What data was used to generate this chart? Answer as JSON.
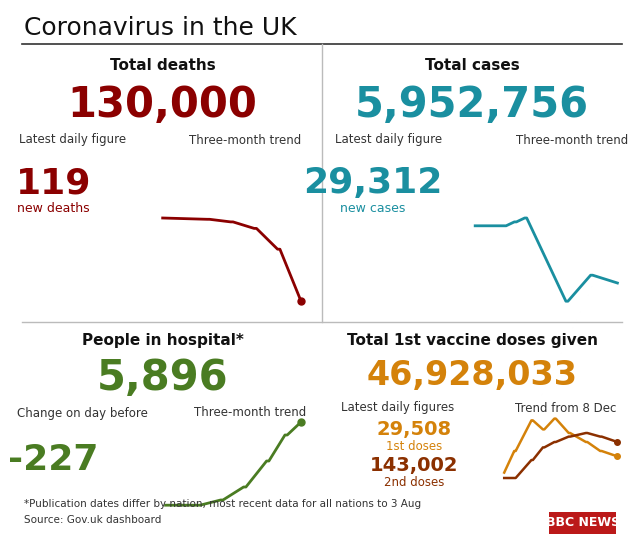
{
  "title": "Coronavirus in the UK",
  "title_fontsize": 18,
  "background_color": "#ffffff",
  "sections": {
    "top_left": {
      "header": "Total deaths",
      "total": "130,000",
      "total_color": "#8B0000",
      "label1": "Latest daily figure",
      "label2": "Three-month trend",
      "daily_value": "119",
      "daily_label": "new deaths",
      "daily_color": "#8B0000",
      "trend_color": "#8B0000"
    },
    "top_right": {
      "header": "Total cases",
      "total": "5,952,756",
      "total_color": "#1a8fa0",
      "label1": "Latest daily figure",
      "label2": "Three-month trend",
      "daily_value": "29,312",
      "daily_label": "new cases",
      "daily_color": "#1a8fa0",
      "trend_color": "#1a8fa0"
    },
    "bottom_left": {
      "header": "People in hospital*",
      "total": "5,896",
      "total_color": "#4a7c22",
      "label1": "Change on day before",
      "label2": "Three-month trend",
      "daily_value": "-227",
      "daily_color": "#4a7c22",
      "trend_color": "#4a7c22"
    },
    "bottom_right": {
      "header": "Total 1st vaccine doses given",
      "total": "46,928,033",
      "total_color": "#d4820a",
      "label1": "Latest daily figures",
      "label2": "Trend from 8 Dec",
      "dose1_value": "29,508",
      "dose1_label": "1st doses",
      "dose1_color": "#d4820a",
      "dose2_value": "143,002",
      "dose2_label": "2nd doses",
      "dose2_color": "#8B3000",
      "trend_color1": "#d4820a",
      "trend_color2": "#8B3000"
    }
  },
  "footnote1": "*Publication dates differ by nation, most recent data for all nations to 3 Aug",
  "footnote2": "Source: Gov.uk dashboard",
  "bbc_logo": "BBC NEWS"
}
